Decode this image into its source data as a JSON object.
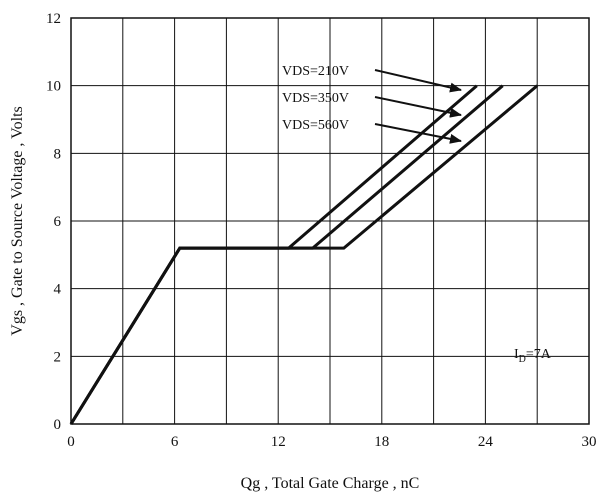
{
  "chart_data": {
    "type": "line",
    "xlabel": "Qg , Total Gate Charge , nC",
    "ylabel": "Vgs , Gate to Source Voltage , Volts",
    "xlim": [
      0,
      30
    ],
    "ylim": [
      0,
      12
    ],
    "xticks": [
      "0",
      "6",
      "12",
      "18",
      "24",
      "30"
    ],
    "yticks": [
      "0",
      "2",
      "4",
      "6",
      "8",
      "10",
      "12"
    ],
    "grid": true,
    "series": [
      {
        "name": "VDS=210V",
        "x": [
          0,
          6.3,
          12.6,
          23.5
        ],
        "y": [
          0,
          5.2,
          5.2,
          10.0
        ]
      },
      {
        "name": "VDS=350V",
        "x": [
          0,
          6.3,
          14.0,
          25.0
        ],
        "y": [
          0,
          5.2,
          5.2,
          10.0
        ]
      },
      {
        "name": "VDS=560V",
        "x": [
          0,
          6.3,
          15.8,
          27.0
        ],
        "y": [
          0,
          5.2,
          5.2,
          10.0
        ]
      }
    ],
    "annotation": {
      "main": "I",
      "sub": "D",
      "rest": "=7A"
    }
  }
}
